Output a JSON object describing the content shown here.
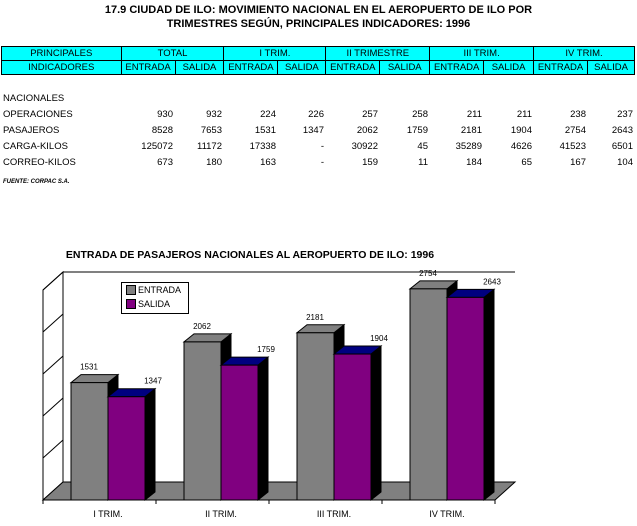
{
  "title_line1": "17.9 CIUDAD DE ILO:  MOVIMIENTO NACIONAL  EN EL AEROPUERTO DE ILO POR",
  "title_line2": "TRIMESTRES SEGÚN, PRINCIPALES INDICADORES: 1996",
  "header": {
    "col1_top": "PRINCIPALES",
    "col1_bottom": "INDICADORES",
    "groups": [
      "TOTAL",
      "I TRIM.",
      "II TRIMESTRE",
      "III TRIM.",
      "IV TRIM."
    ],
    "sub": [
      "ENTRADA",
      "SALIDA"
    ]
  },
  "section_label": "NACIONALES",
  "rows": [
    {
      "label": "OPERACIONES",
      "values": [
        "930",
        "932",
        "224",
        "226",
        "257",
        "258",
        "211",
        "211",
        "238",
        "237"
      ]
    },
    {
      "label": "PASAJEROS",
      "values": [
        "8528",
        "7653",
        "1531",
        "1347",
        "2062",
        "1759",
        "2181",
        "1904",
        "2754",
        "2643"
      ]
    },
    {
      "label": "CARGA-KILOS",
      "values": [
        "125072",
        "11172",
        "17338",
        "-",
        "30922",
        "45",
        "35289",
        "4626",
        "41523",
        "6501"
      ]
    },
    {
      "label": "CORREO-KILOS",
      "values": [
        "673",
        "180",
        "163",
        "-",
        "159",
        "11",
        "184",
        "65",
        "167",
        "104"
      ]
    }
  ],
  "source": "FUENTE: CORPAC S.A.",
  "chart_title": "ENTRADA DE PASAJEROS NACIONALES AL AEROPUERTO DE ILO: 1996",
  "chart_data": {
    "type": "bar",
    "title": "ENTRADA DE PASAJEROS NACIONALES AL AEROPUERTO DE ILO: 1996",
    "categories": [
      "I TRIM.",
      "II TRIM.",
      "III TRIM.",
      "IV TRIM."
    ],
    "series": [
      {
        "name": "ENTRADA",
        "values": [
          1531,
          2062,
          2181,
          2754
        ],
        "color": "#808080"
      },
      {
        "name": "SALIDA",
        "values": [
          1347,
          1759,
          1904,
          2643
        ],
        "color": "#800080"
      }
    ],
    "ylim": [
      0,
      3000
    ],
    "legend": "top-left",
    "grid": true
  }
}
